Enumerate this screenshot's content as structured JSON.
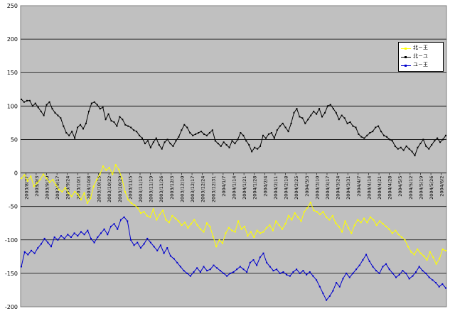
{
  "chart_data": {
    "type": "line",
    "title": "",
    "xlabel": "",
    "ylabel": "",
    "ylim": [
      -200,
      250
    ],
    "yticks": [
      250,
      200,
      150,
      100,
      50,
      0,
      -50,
      -100,
      -150,
      -200
    ],
    "grid": true,
    "legend_position": "top-right",
    "tick_labels": [
      "2003/8/27",
      "2003/9/3",
      "2003/9/10",
      "2003/9/17",
      "2003/9/24",
      "2003/10/1",
      "2003/10/8",
      "2003/10/15",
      "2003/10/22",
      "2003/10/29",
      "2003/11/5",
      "2003/11/12",
      "2003/11/19",
      "2003/11/26",
      "2003/12/3",
      "2003/12/10",
      "2003/12/17",
      "2003/12/24",
      "2003/12/31",
      "2004/1/7",
      "2004/1/14",
      "2004/1/21",
      "2004/1/28",
      "2004/2/4",
      "2004/2/11",
      "2004/2/18",
      "2004/2/25",
      "2004/3/3",
      "2004/3/10",
      "2004/3/17",
      "2004/3/24",
      "2004/3/31",
      "2004/4/7",
      "2004/4/14",
      "2004/4/21",
      "2004/4/28",
      "2004/5/5",
      "2004/5/12",
      "2004/5/19",
      "2004/5/26",
      "2004/6/2"
    ],
    "series": [
      {
        "name": "北－王",
        "color": "#ffff00",
        "values": [
          -8,
          -3,
          -12,
          -5,
          -20,
          -15,
          -10,
          -2,
          -8,
          -14,
          -10,
          -18,
          -25,
          -28,
          -22,
          -30,
          -35,
          -28,
          -32,
          -40,
          -30,
          -45,
          -38,
          -20,
          -10,
          -2,
          10,
          4,
          8,
          -2,
          12,
          5,
          -8,
          -28,
          -40,
          -45,
          -48,
          -52,
          -60,
          -58,
          -64,
          -66,
          -54,
          -70,
          -62,
          -56,
          -70,
          -74,
          -64,
          -68,
          -72,
          -78,
          -74,
          -82,
          -76,
          -70,
          -78,
          -84,
          -88,
          -75,
          -80,
          -95,
          -110,
          -100,
          -105,
          -90,
          -82,
          -86,
          -88,
          -72,
          -84,
          -80,
          -94,
          -88,
          -96,
          -86,
          -90,
          -88,
          -82,
          -78,
          -86,
          -72,
          -78,
          -84,
          -76,
          -64,
          -70,
          -60,
          -66,
          -72,
          -58,
          -52,
          -44,
          -56,
          -58,
          -62,
          -58,
          -66,
          -70,
          -64,
          -75,
          -80,
          -88,
          -72,
          -82,
          -90,
          -78,
          -70,
          -74,
          -68,
          -74,
          -66,
          -70,
          -78,
          -72,
          -76,
          -80,
          -84,
          -90,
          -86,
          -92,
          -96,
          -100,
          -110,
          -118,
          -122,
          -114,
          -120,
          -124,
          -130,
          -118,
          -126,
          -136,
          -128,
          -114,
          -116
        ]
      },
      {
        "name": "北－ユ",
        "color": "#000000",
        "values": [
          110,
          106,
          108,
          108,
          100,
          104,
          98,
          92,
          86,
          102,
          106,
          96,
          90,
          86,
          82,
          70,
          60,
          56,
          62,
          52,
          68,
          72,
          66,
          74,
          92,
          104,
          106,
          102,
          96,
          98,
          80,
          88,
          78,
          76,
          70,
          84,
          80,
          72,
          70,
          68,
          64,
          62,
          56,
          52,
          44,
          48,
          38,
          46,
          52,
          42,
          36,
          46,
          50,
          44,
          40,
          48,
          54,
          64,
          72,
          68,
          60,
          56,
          58,
          60,
          62,
          58,
          56,
          60,
          64,
          48,
          44,
          40,
          46,
          42,
          38,
          48,
          44,
          50,
          60,
          56,
          48,
          42,
          32,
          38,
          36,
          40,
          56,
          52,
          58,
          60,
          52,
          64,
          70,
          74,
          68,
          62,
          74,
          90,
          96,
          84,
          82,
          74,
          80,
          86,
          92,
          88,
          96,
          84,
          90,
          100,
          102,
          96,
          90,
          80,
          86,
          82,
          74,
          76,
          70,
          68,
          58,
          54,
          52,
          56,
          60,
          62,
          68,
          70,
          62,
          56,
          54,
          50,
          48,
          40,
          36,
          38,
          34,
          40,
          36,
          32,
          26,
          38,
          44,
          50,
          40,
          36,
          42,
          48,
          52,
          46,
          50,
          56
        ]
      },
      {
        "name": "ユ－王",
        "color": "#0000cc",
        "values": [
          -140,
          -118,
          -122,
          -116,
          -120,
          -112,
          -106,
          -98,
          -104,
          -110,
          -96,
          -100,
          -94,
          -98,
          -92,
          -96,
          -90,
          -94,
          -88,
          -92,
          -86,
          -98,
          -104,
          -96,
          -90,
          -84,
          -92,
          -80,
          -76,
          -84,
          -70,
          -66,
          -72,
          -100,
          -108,
          -104,
          -112,
          -106,
          -98,
          -104,
          -110,
          -116,
          -108,
          -120,
          -112,
          -124,
          -128,
          -134,
          -140,
          -146,
          -150,
          -154,
          -148,
          -142,
          -148,
          -140,
          -146,
          -144,
          -138,
          -142,
          -146,
          -150,
          -154,
          -150,
          -148,
          -144,
          -140,
          -144,
          -148,
          -134,
          -130,
          -138,
          -126,
          -120,
          -134,
          -140,
          -146,
          -144,
          -150,
          -148,
          -152,
          -154,
          -148,
          -144,
          -150,
          -146,
          -152,
          -148,
          -154,
          -160,
          -170,
          -180,
          -190,
          -184,
          -176,
          -164,
          -170,
          -158,
          -150,
          -156,
          -150,
          -144,
          -138,
          -130,
          -122,
          -132,
          -140,
          -146,
          -150,
          -140,
          -136,
          -144,
          -150,
          -156,
          -152,
          -146,
          -150,
          -158,
          -154,
          -148,
          -140,
          -146,
          -150,
          -156,
          -160,
          -164,
          -170,
          -166,
          -172
        ]
      }
    ]
  }
}
